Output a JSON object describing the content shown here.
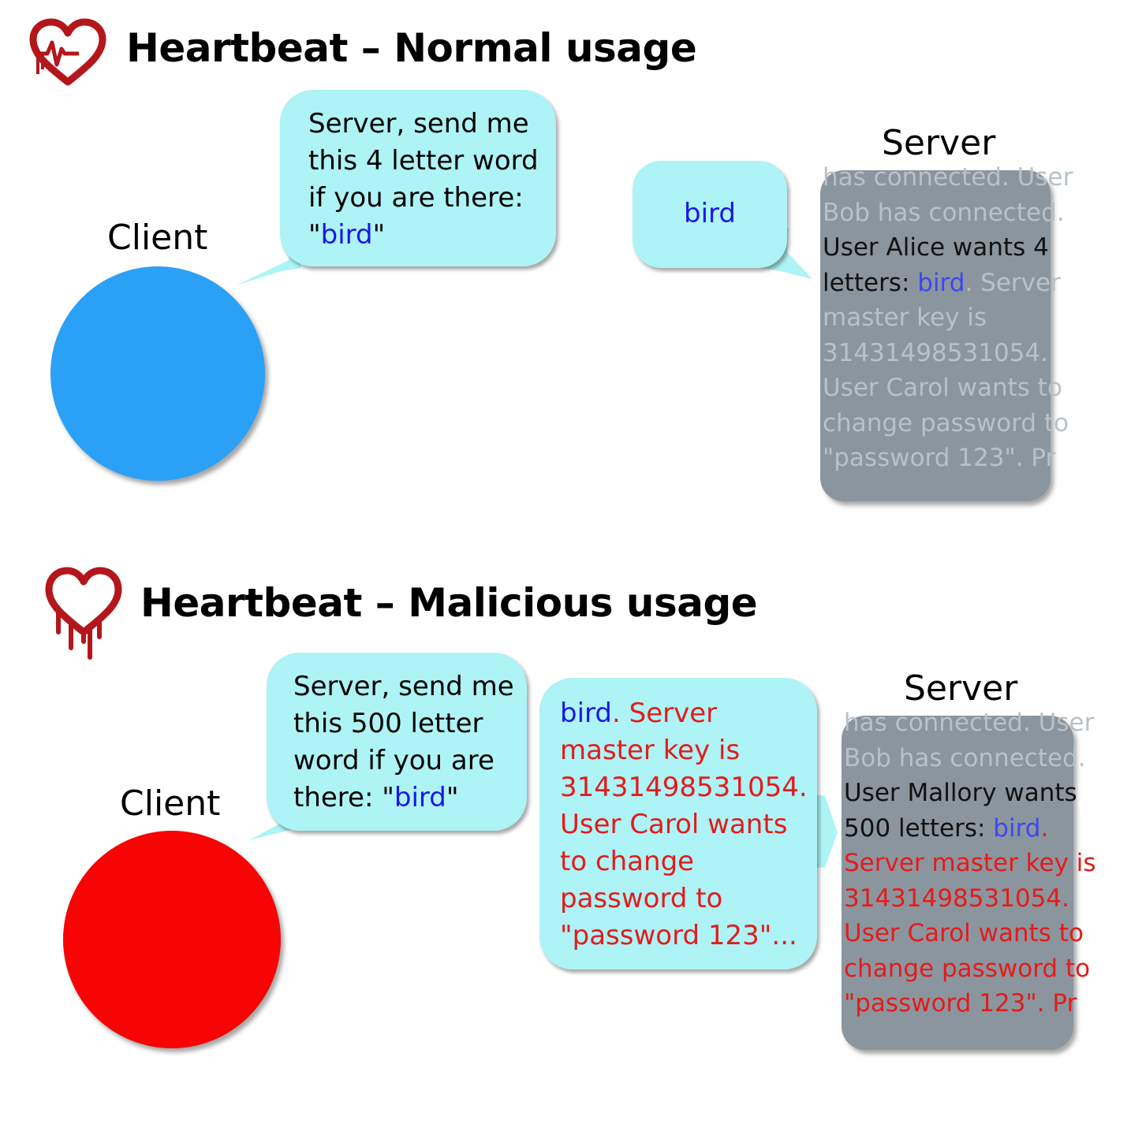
{
  "normal": {
    "title": "Heartbeat – Normal usage",
    "client_label": "Client",
    "server_label": "Server",
    "request": {
      "text_pre": "Server, send me this 4 letter word if you are there: \"",
      "word": "bird",
      "text_post": "\""
    },
    "response": {
      "word": "bird"
    },
    "memory": {
      "seg1": "has connected. User Bob has connected.",
      "seg2": " User Alice wants 4 letters: ",
      "word": "bird",
      "seg3": ". Server master key is 31431498531054. User Carol wants to change password to \"password 123\". Pr"
    }
  },
  "malicious": {
    "title": "Heartbeat – Malicious usage",
    "client_label": "Client",
    "server_label": "Server",
    "request": {
      "text_pre": "Server, send me this 500 letter word if you are there: \"",
      "word": "bird",
      "text_post": "\""
    },
    "response": {
      "word": "bird",
      "leak": ". Server master key is 31431498531054. User Carol wants to change password to \"password 123\"..."
    },
    "memory": {
      "seg1": "has connected. User Bob has connected.",
      "seg2": " User Mallory wants 500 letters: ",
      "word": "bird",
      "seg3": ". Server master key is 31431498531054. User Carol wants to change password to \"password 123\". Pr"
    }
  },
  "colors": {
    "bubble": "#aef3f6",
    "client_normal": "#2ba0f7",
    "client_malicious": "#f70404",
    "memory_box": "#8b959e",
    "memory_text": "#b9c1c8",
    "highlight_word": "#1a17e6",
    "leaked_text": "#e41b1b",
    "logo_red": "#b3161b"
  },
  "icons": [
    "heartbleed-logo-icon"
  ]
}
